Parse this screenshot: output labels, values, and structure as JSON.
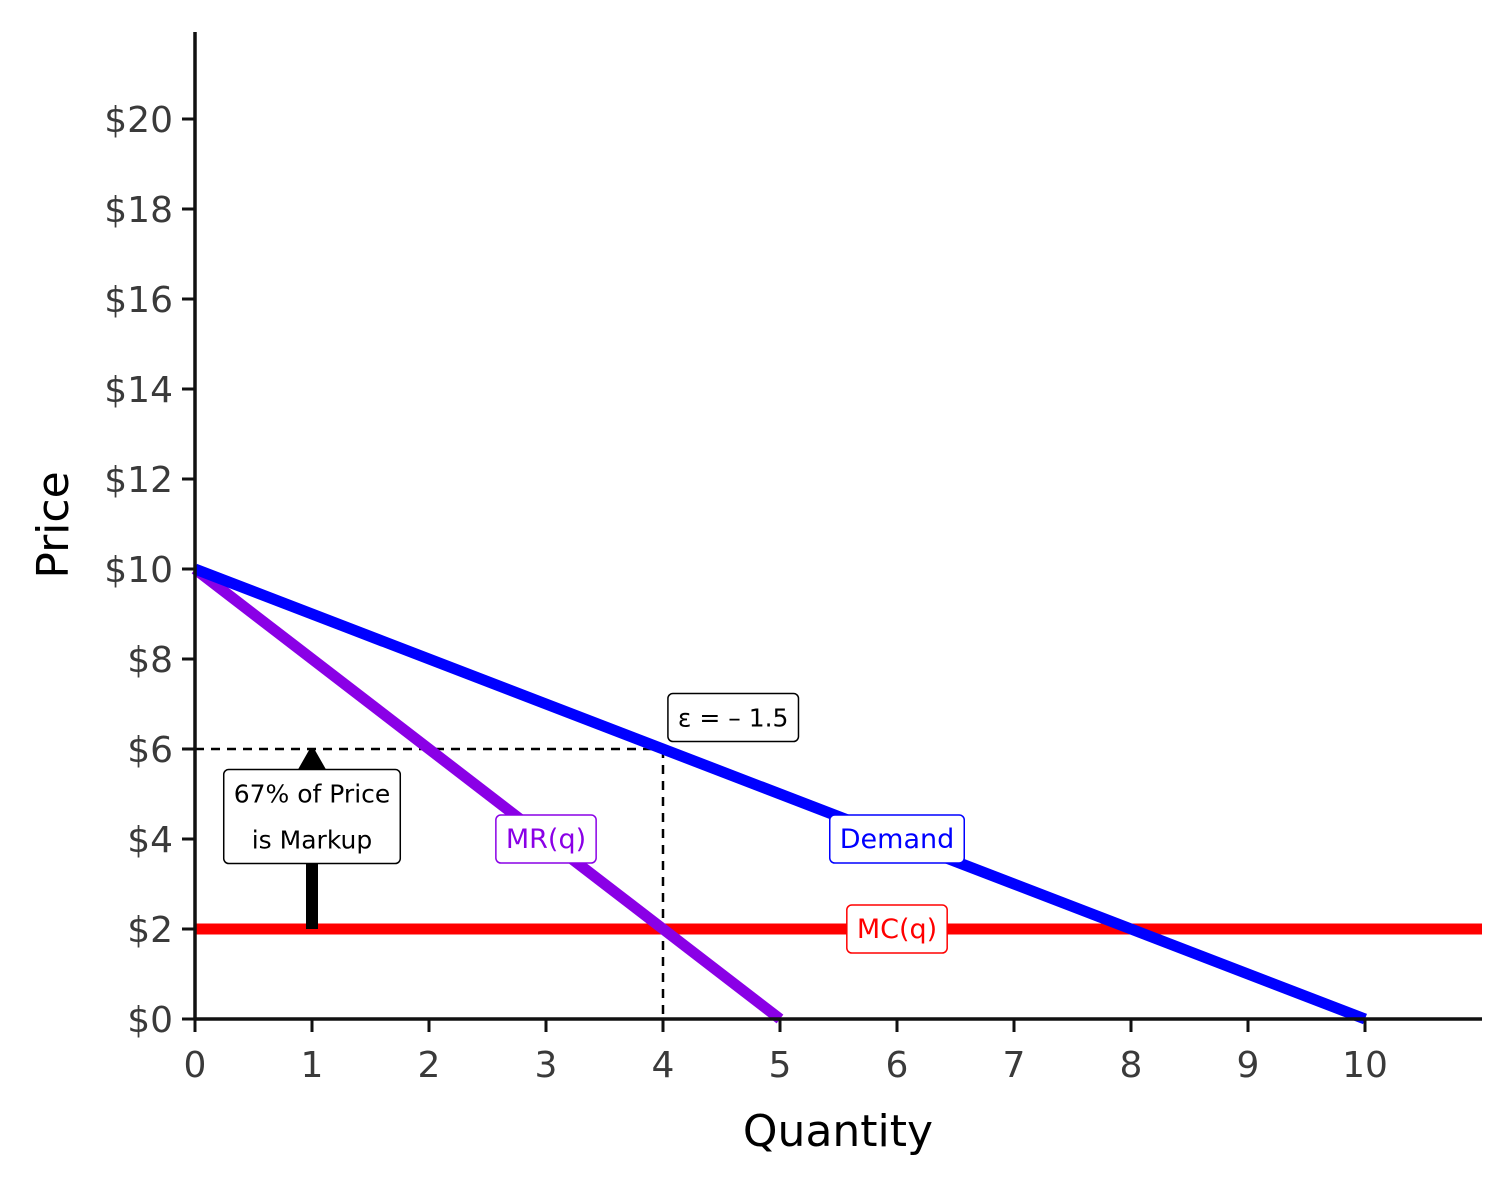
{
  "chart_data": {
    "type": "line",
    "title": "",
    "xlabel": "Quantity",
    "ylabel": "Price",
    "xlim": [
      0,
      11
    ],
    "ylim": [
      0,
      22
    ],
    "x_ticks": [
      0,
      1,
      2,
      3,
      4,
      5,
      6,
      7,
      8,
      9,
      10
    ],
    "x_tick_labels": [
      "0",
      "1",
      "2",
      "3",
      "4",
      "5",
      "6",
      "7",
      "8",
      "9",
      "10"
    ],
    "y_ticks": [
      0,
      2,
      4,
      6,
      8,
      10,
      12,
      14,
      16,
      18,
      20
    ],
    "y_tick_labels": [
      "$0",
      "$2",
      "$4",
      "$6",
      "$8",
      "$10",
      "$12",
      "$14",
      "$16",
      "$18",
      "$20"
    ],
    "grid": false,
    "series": [
      {
        "name": "Demand",
        "color": "#0000ff",
        "x": [
          0,
          10
        ],
        "y": [
          10,
          0
        ]
      },
      {
        "name": "MR(q)",
        "color": "#8a00e6",
        "x": [
          0,
          5
        ],
        "y": [
          10,
          0
        ]
      },
      {
        "name": "MC(q)",
        "color": "#ff0000",
        "x": [
          0,
          11
        ],
        "y": [
          2,
          2
        ]
      }
    ],
    "series_labels": [
      {
        "text": "MR(q)",
        "x": 3,
        "y": 4,
        "color": "#8a00e6"
      },
      {
        "text": "Demand",
        "x": 6,
        "y": 4,
        "color": "#0000ff"
      },
      {
        "text": "MC(q)",
        "x": 6,
        "y": 2,
        "color": "#ff0000"
      }
    ],
    "reference_lines": {
      "x": 4,
      "y": 6,
      "style": "dashed",
      "color": "#000000"
    },
    "annotations": [
      {
        "text": "ε = – 1.5",
        "x": 4.6,
        "y": 6.7
      },
      {
        "text_lines": [
          "67% of Price",
          "is Markup"
        ],
        "x": 1,
        "y": 4.5
      }
    ],
    "arrow": {
      "x": 1,
      "y_from": 2,
      "y_to": 6,
      "color": "#000000"
    }
  }
}
